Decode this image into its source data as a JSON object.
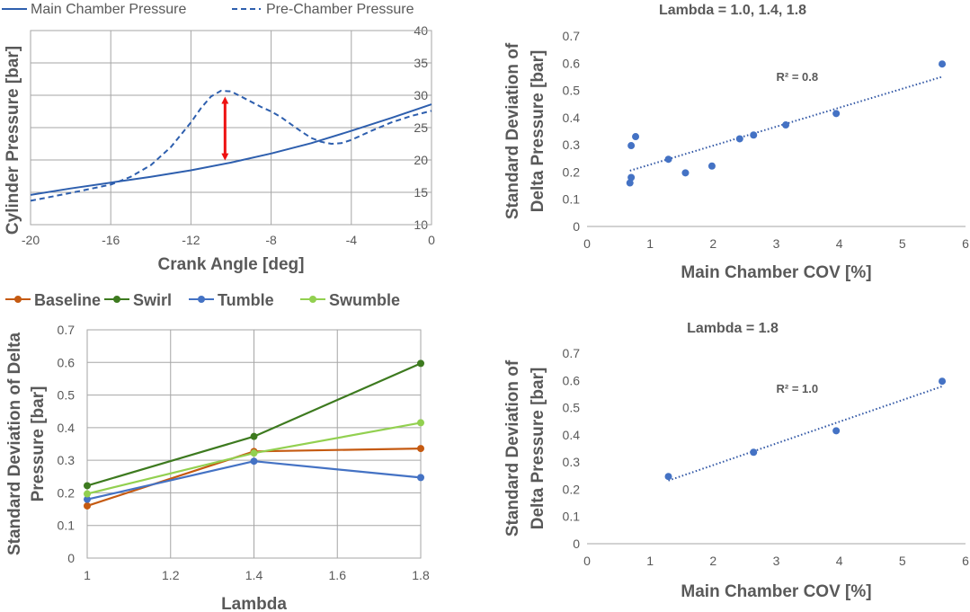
{
  "colors": {
    "main_blue": "#2e5fae",
    "scatter_blue": "#4472c4",
    "trend_blue": "#2f55a4",
    "arrow_red": "#ee1111",
    "baseline": "#c55a11",
    "swirl": "#3d7a1f",
    "tumble": "#4472c4",
    "swumble": "#92d050",
    "grid": "#a6a6a6",
    "text": "#595959"
  },
  "chart_data": [
    {
      "id": "pressure",
      "type": "line",
      "title": "",
      "xlabel": "Crank Angle [deg]",
      "ylabel": "Cylinder Pressure [bar]",
      "xlim": [
        -20,
        0
      ],
      "ylim": [
        10,
        40
      ],
      "xticks": [
        -20,
        -16,
        -12,
        -8,
        -4,
        0
      ],
      "xtick_labels": [
        "-20",
        "-16",
        "-12",
        "-8",
        "-4",
        "0"
      ],
      "yticks": [
        10,
        15,
        20,
        25,
        30,
        35,
        40
      ],
      "ytick_labels": [
        "10",
        "15",
        "20",
        "25",
        "30",
        "35",
        "40"
      ],
      "y_axis_side": "right",
      "grid": true,
      "legend_position": "top",
      "series": [
        {
          "name": "Main Chamber Pressure",
          "style": "solid",
          "x": [
            -20,
            -18,
            -16,
            -14,
            -12,
            -10,
            -8,
            -6,
            -4,
            -2,
            0
          ],
          "y": [
            14.6,
            15.6,
            16.5,
            17.4,
            18.4,
            19.6,
            21.0,
            22.6,
            24.5,
            26.5,
            28.6
          ]
        },
        {
          "name": "Pre-Chamber Pressure",
          "style": "dashed",
          "x": [
            -20,
            -18,
            -16,
            -15,
            -14,
            -13,
            -12,
            -11.5,
            -11,
            -10.5,
            -10,
            -9.5,
            -9,
            -8.5,
            -8,
            -7.5,
            -7,
            -6.5,
            -6,
            -5.5,
            -5,
            -4.5,
            -4,
            -3,
            -2,
            -1,
            0
          ],
          "y": [
            13.7,
            14.9,
            16.2,
            17.4,
            19.2,
            22.0,
            25.8,
            28.0,
            29.8,
            30.7,
            30.6,
            29.8,
            29.0,
            28.2,
            27.5,
            26.6,
            25.5,
            24.4,
            23.4,
            22.8,
            22.5,
            22.6,
            23.1,
            24.5,
            25.8,
            26.8,
            27.6
          ]
        }
      ],
      "annotation": {
        "type": "double-arrow",
        "x": -10.3,
        "y_from": 19.5,
        "y_to": 30.2
      }
    },
    {
      "id": "scatter_all",
      "type": "scatter",
      "title": "Lambda = 1.0, 1.4, 1.8",
      "xlabel": "Main Chamber COV [%]",
      "ylabel": "Standard Deviation of Delta Pressure [bar]",
      "ylabel_lines": [
        "Standard Deviation of",
        "Delta Pressure [bar]"
      ],
      "xlim": [
        0,
        6
      ],
      "ylim": [
        0,
        0.7
      ],
      "xticks": [
        0,
        1,
        2,
        3,
        4,
        5,
        6
      ],
      "xtick_labels": [
        "0",
        "1",
        "2",
        "3",
        "4",
        "5",
        "6"
      ],
      "yticks": [
        0,
        0.1,
        0.2,
        0.3,
        0.4,
        0.5,
        0.6,
        0.7
      ],
      "ytick_labels": [
        "0",
        "0.1",
        "0.2",
        "0.3",
        "0.4",
        "0.5",
        "0.6",
        "0.7"
      ],
      "grid": false,
      "points": {
        "x": [
          0.68,
          0.7,
          0.7,
          0.77,
          1.29,
          1.56,
          1.98,
          2.42,
          2.64,
          3.15,
          3.95,
          5.63
        ],
        "y": [
          0.16,
          0.18,
          0.297,
          0.33,
          0.247,
          0.197,
          0.222,
          0.322,
          0.336,
          0.373,
          0.415,
          0.597
        ]
      },
      "trendline": {
        "x": [
          0.68,
          5.63
        ],
        "y": [
          0.205,
          0.55
        ]
      },
      "r2_label": "R² = 0.8",
      "r2_anchor": {
        "x": 3.0,
        "y": 0.535
      }
    },
    {
      "id": "lambda_lines",
      "type": "line",
      "title": "",
      "xlabel": "Lambda",
      "ylabel": "Standard Deviation of Delta Pressure [bar]",
      "ylabel_lines": [
        "Standard Deviation of Delta",
        "Pressure [bar]"
      ],
      "xlim": [
        1,
        1.8
      ],
      "ylim": [
        0,
        0.7
      ],
      "xticks": [
        1,
        1.2,
        1.4,
        1.6,
        1.8
      ],
      "xtick_labels": [
        "1",
        "1.2",
        "1.4",
        "1.6",
        "1.8"
      ],
      "yticks": [
        0,
        0.1,
        0.2,
        0.3,
        0.4,
        0.5,
        0.6,
        0.7
      ],
      "ytick_labels": [
        "0",
        "0.1",
        "0.2",
        "0.3",
        "0.4",
        "0.5",
        "0.6",
        "0.7"
      ],
      "grid": true,
      "legend_position": "top",
      "categories": [
        1.0,
        1.4,
        1.8
      ],
      "series": [
        {
          "name": "Baseline",
          "color_key": "baseline",
          "values": [
            0.16,
            0.327,
            0.336
          ]
        },
        {
          "name": "Swirl",
          "color_key": "swirl",
          "values": [
            0.222,
            0.373,
            0.597
          ]
        },
        {
          "name": "Tumble",
          "color_key": "tumble",
          "values": [
            0.18,
            0.297,
            0.247
          ]
        },
        {
          "name": "Swumble",
          "color_key": "swumble",
          "values": [
            0.197,
            0.322,
            0.415
          ]
        }
      ]
    },
    {
      "id": "scatter_18",
      "type": "scatter",
      "title": "Lambda = 1.8",
      "xlabel": "Main Chamber COV [%]",
      "ylabel": "Standard Deviation of Delta Pressure [bar]",
      "ylabel_lines": [
        "Standard Deviation of",
        "Delta Pressure [bar]"
      ],
      "xlim": [
        0,
        6
      ],
      "ylim": [
        0,
        0.7
      ],
      "xticks": [
        0,
        1,
        2,
        3,
        4,
        5,
        6
      ],
      "xtick_labels": [
        "0",
        "1",
        "2",
        "3",
        "4",
        "5",
        "6"
      ],
      "yticks": [
        0,
        0.1,
        0.2,
        0.3,
        0.4,
        0.5,
        0.6,
        0.7
      ],
      "ytick_labels": [
        "0",
        "0.1",
        "0.2",
        "0.3",
        "0.4",
        "0.5",
        "0.6",
        "0.7"
      ],
      "grid": false,
      "points": {
        "x": [
          1.29,
          2.64,
          3.95,
          5.63
        ],
        "y": [
          0.247,
          0.336,
          0.415,
          0.597
        ]
      },
      "trendline": {
        "x": [
          1.29,
          5.63
        ],
        "y": [
          0.232,
          0.578
        ]
      },
      "r2_label": "R² = 1.0",
      "r2_anchor": {
        "x": 3.0,
        "y": 0.555
      }
    }
  ]
}
